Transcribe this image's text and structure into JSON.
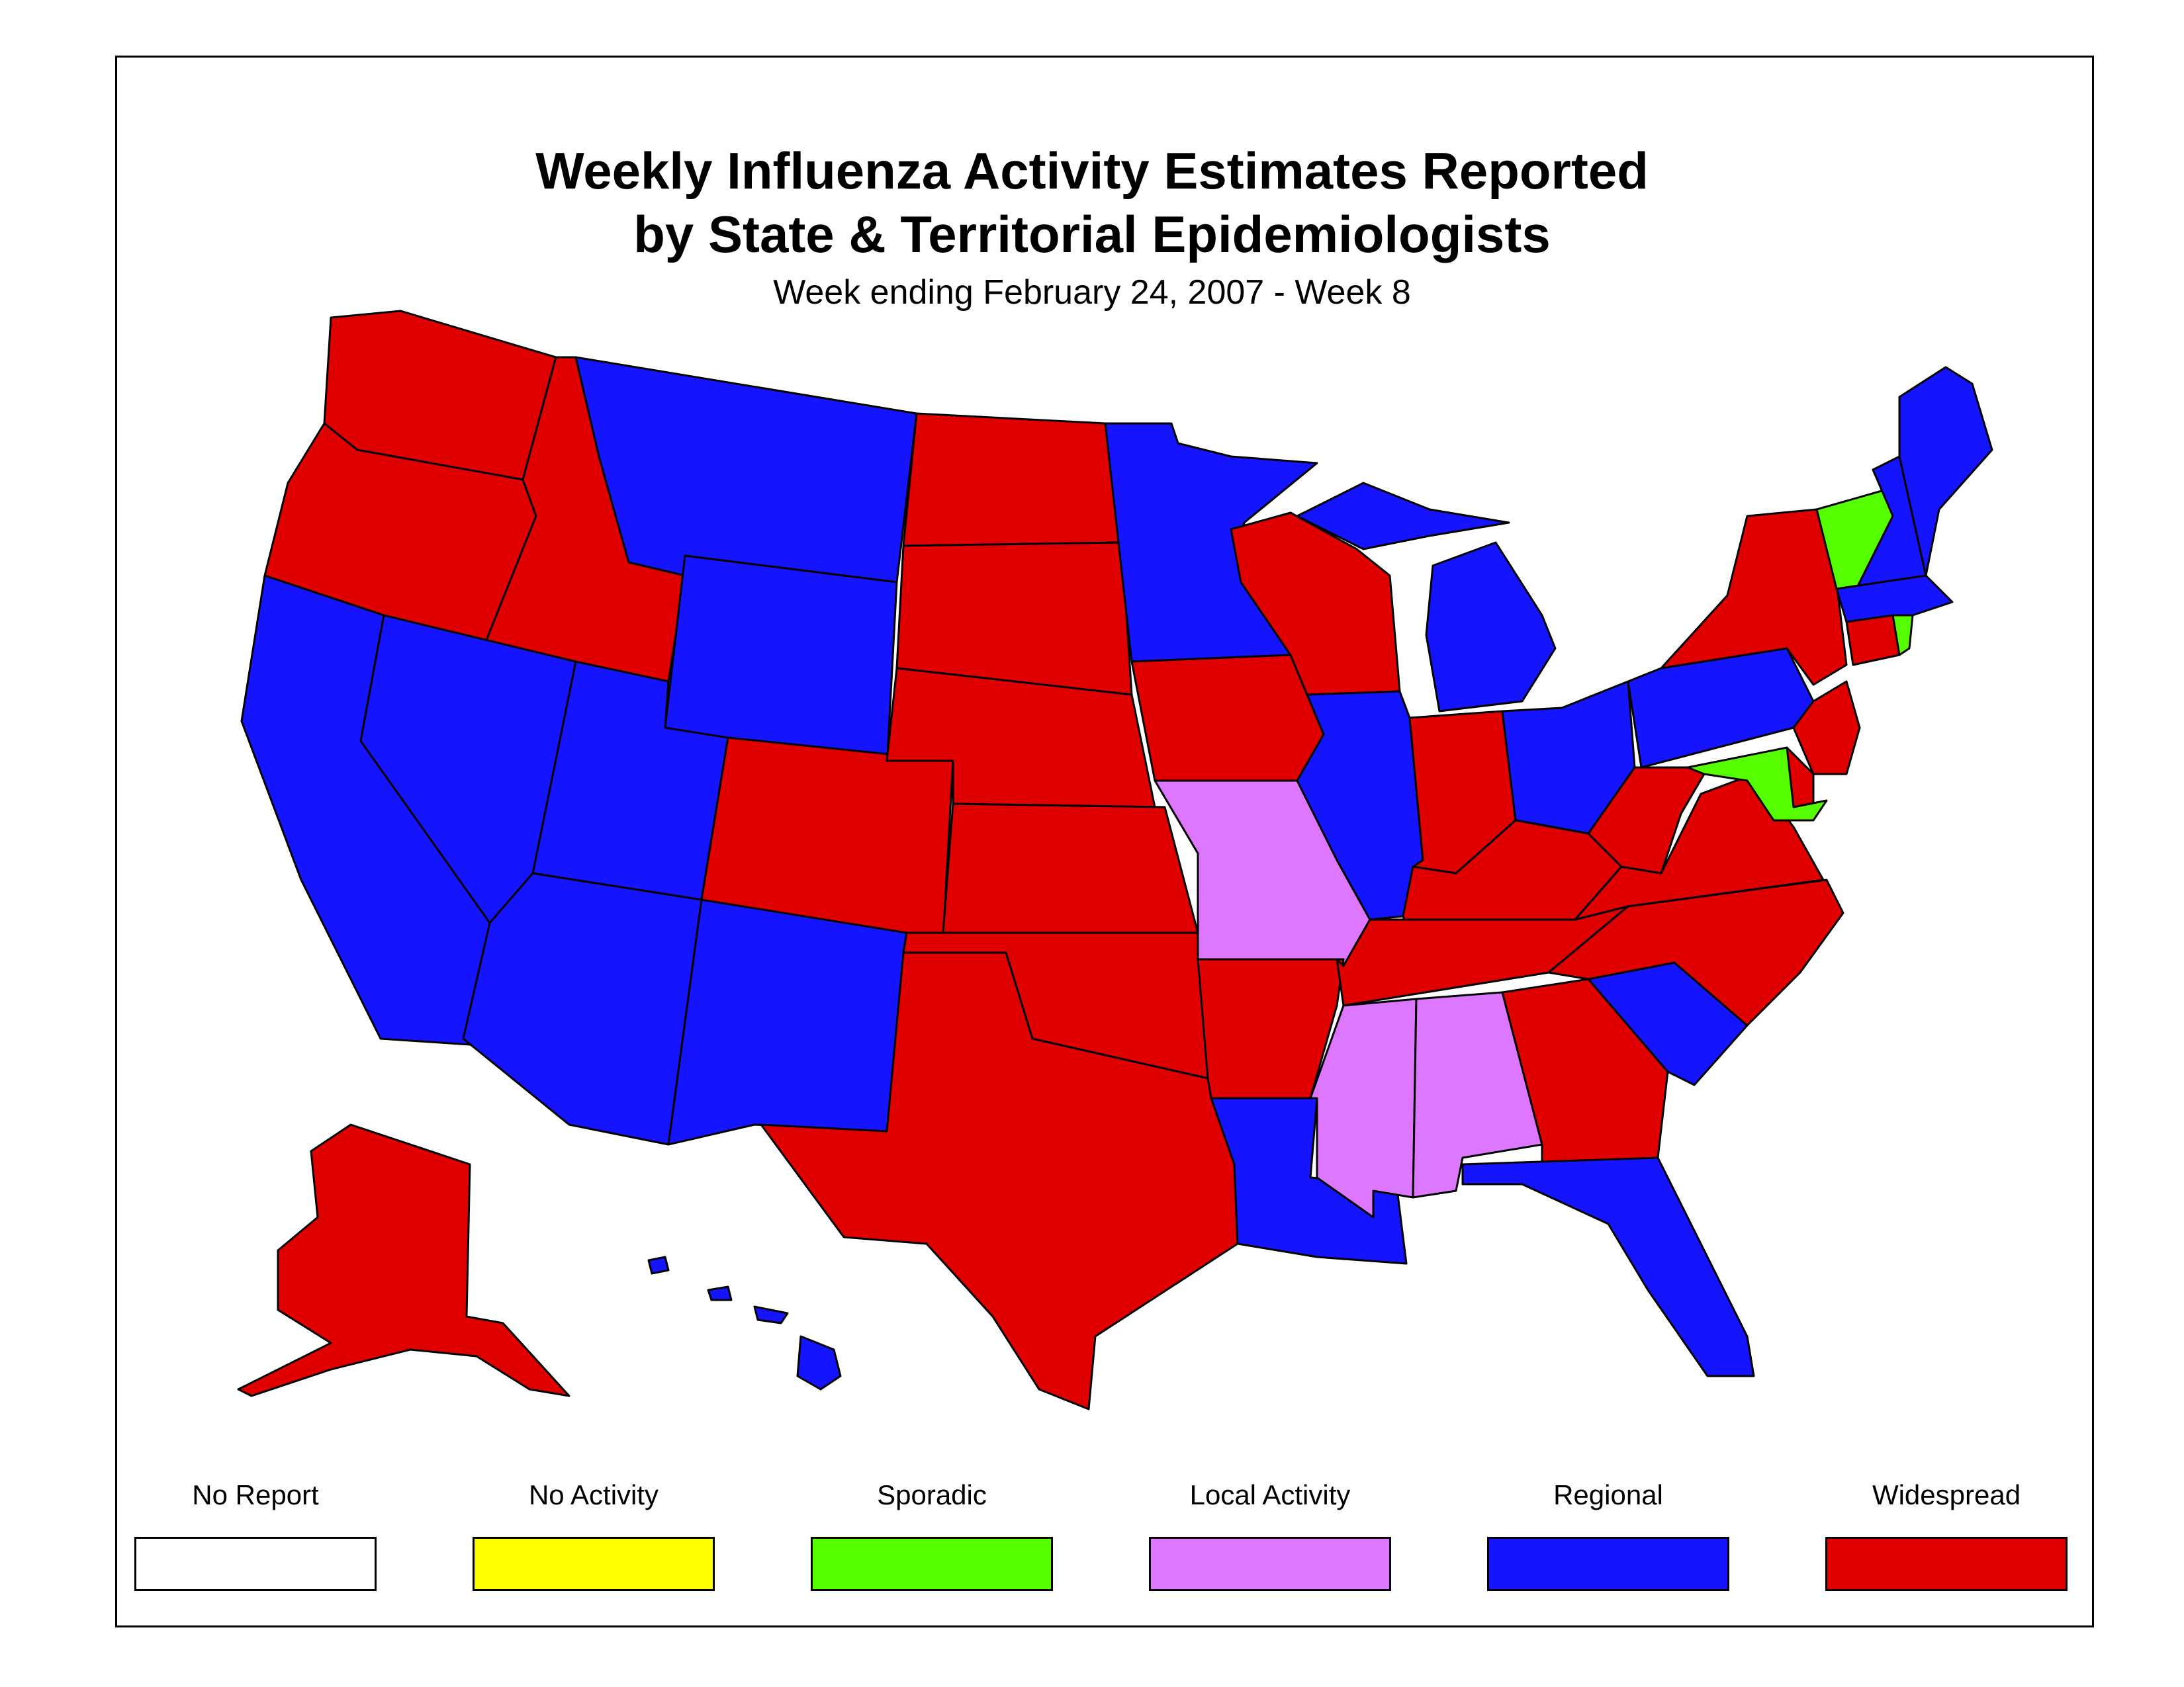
{
  "title_line1": "Weekly Influenza Activity Estimates Reported",
  "title_line2": "by State & Territorial Epidemiologists",
  "subtitle": "Week ending February 24, 2007 - Week 8",
  "legend": [
    {
      "label": "No Report",
      "color": "#ffffff"
    },
    {
      "label": "No Activity",
      "color": "#ffff00"
    },
    {
      "label": "Sporadic",
      "color": "#55ff00"
    },
    {
      "label": "Local Activity",
      "color": "#dd77ff"
    },
    {
      "label": "Regional",
      "color": "#1414ff"
    },
    {
      "label": "Widespread",
      "color": "#e00000"
    }
  ],
  "states": [
    {
      "name": "Washington",
      "level": "Widespread"
    },
    {
      "name": "Oregon",
      "level": "Widespread"
    },
    {
      "name": "California",
      "level": "Regional"
    },
    {
      "name": "Idaho",
      "level": "Widespread"
    },
    {
      "name": "Nevada",
      "level": "Regional"
    },
    {
      "name": "Montana",
      "level": "Regional"
    },
    {
      "name": "Wyoming",
      "level": "Regional"
    },
    {
      "name": "Utah",
      "level": "Regional"
    },
    {
      "name": "Arizona",
      "level": "Regional"
    },
    {
      "name": "Colorado",
      "level": "Widespread"
    },
    {
      "name": "New Mexico",
      "level": "Regional"
    },
    {
      "name": "North Dakota",
      "level": "Widespread"
    },
    {
      "name": "South Dakota",
      "level": "Widespread"
    },
    {
      "name": "Nebraska",
      "level": "Widespread"
    },
    {
      "name": "Kansas",
      "level": "Widespread"
    },
    {
      "name": "Oklahoma",
      "level": "Widespread"
    },
    {
      "name": "Texas",
      "level": "Widespread"
    },
    {
      "name": "Minnesota",
      "level": "Regional"
    },
    {
      "name": "Iowa",
      "level": "Widespread"
    },
    {
      "name": "Missouri",
      "level": "Local Activity"
    },
    {
      "name": "Arkansas",
      "level": "Widespread"
    },
    {
      "name": "Louisiana",
      "level": "Regional"
    },
    {
      "name": "Wisconsin",
      "level": "Widespread"
    },
    {
      "name": "Illinois",
      "level": "Regional"
    },
    {
      "name": "Michigan",
      "level": "Regional"
    },
    {
      "name": "Indiana",
      "level": "Widespread"
    },
    {
      "name": "Ohio",
      "level": "Regional"
    },
    {
      "name": "Kentucky",
      "level": "Widespread"
    },
    {
      "name": "Tennessee",
      "level": "Widespread"
    },
    {
      "name": "Mississippi",
      "level": "Local Activity"
    },
    {
      "name": "Alabama",
      "level": "Local Activity"
    },
    {
      "name": "Georgia",
      "level": "Widespread"
    },
    {
      "name": "Florida",
      "level": "Regional"
    },
    {
      "name": "South Carolina",
      "level": "Regional"
    },
    {
      "name": "North Carolina",
      "level": "Widespread"
    },
    {
      "name": "Virginia",
      "level": "Widespread"
    },
    {
      "name": "West Virginia",
      "level": "Widespread"
    },
    {
      "name": "Pennsylvania",
      "level": "Regional"
    },
    {
      "name": "New York",
      "level": "Widespread"
    },
    {
      "name": "New Jersey",
      "level": "Widespread"
    },
    {
      "name": "Delaware",
      "level": "Widespread"
    },
    {
      "name": "Maryland",
      "level": "Sporadic"
    },
    {
      "name": "Vermont",
      "level": "Sporadic"
    },
    {
      "name": "New Hampshire",
      "level": "Regional"
    },
    {
      "name": "Maine",
      "level": "Regional"
    },
    {
      "name": "Massachusetts",
      "level": "Regional"
    },
    {
      "name": "Connecticut",
      "level": "Widespread"
    },
    {
      "name": "Rhode Island",
      "level": "Sporadic"
    },
    {
      "name": "Alaska",
      "level": "Widespread"
    },
    {
      "name": "Hawaii",
      "level": "Regional"
    }
  ]
}
